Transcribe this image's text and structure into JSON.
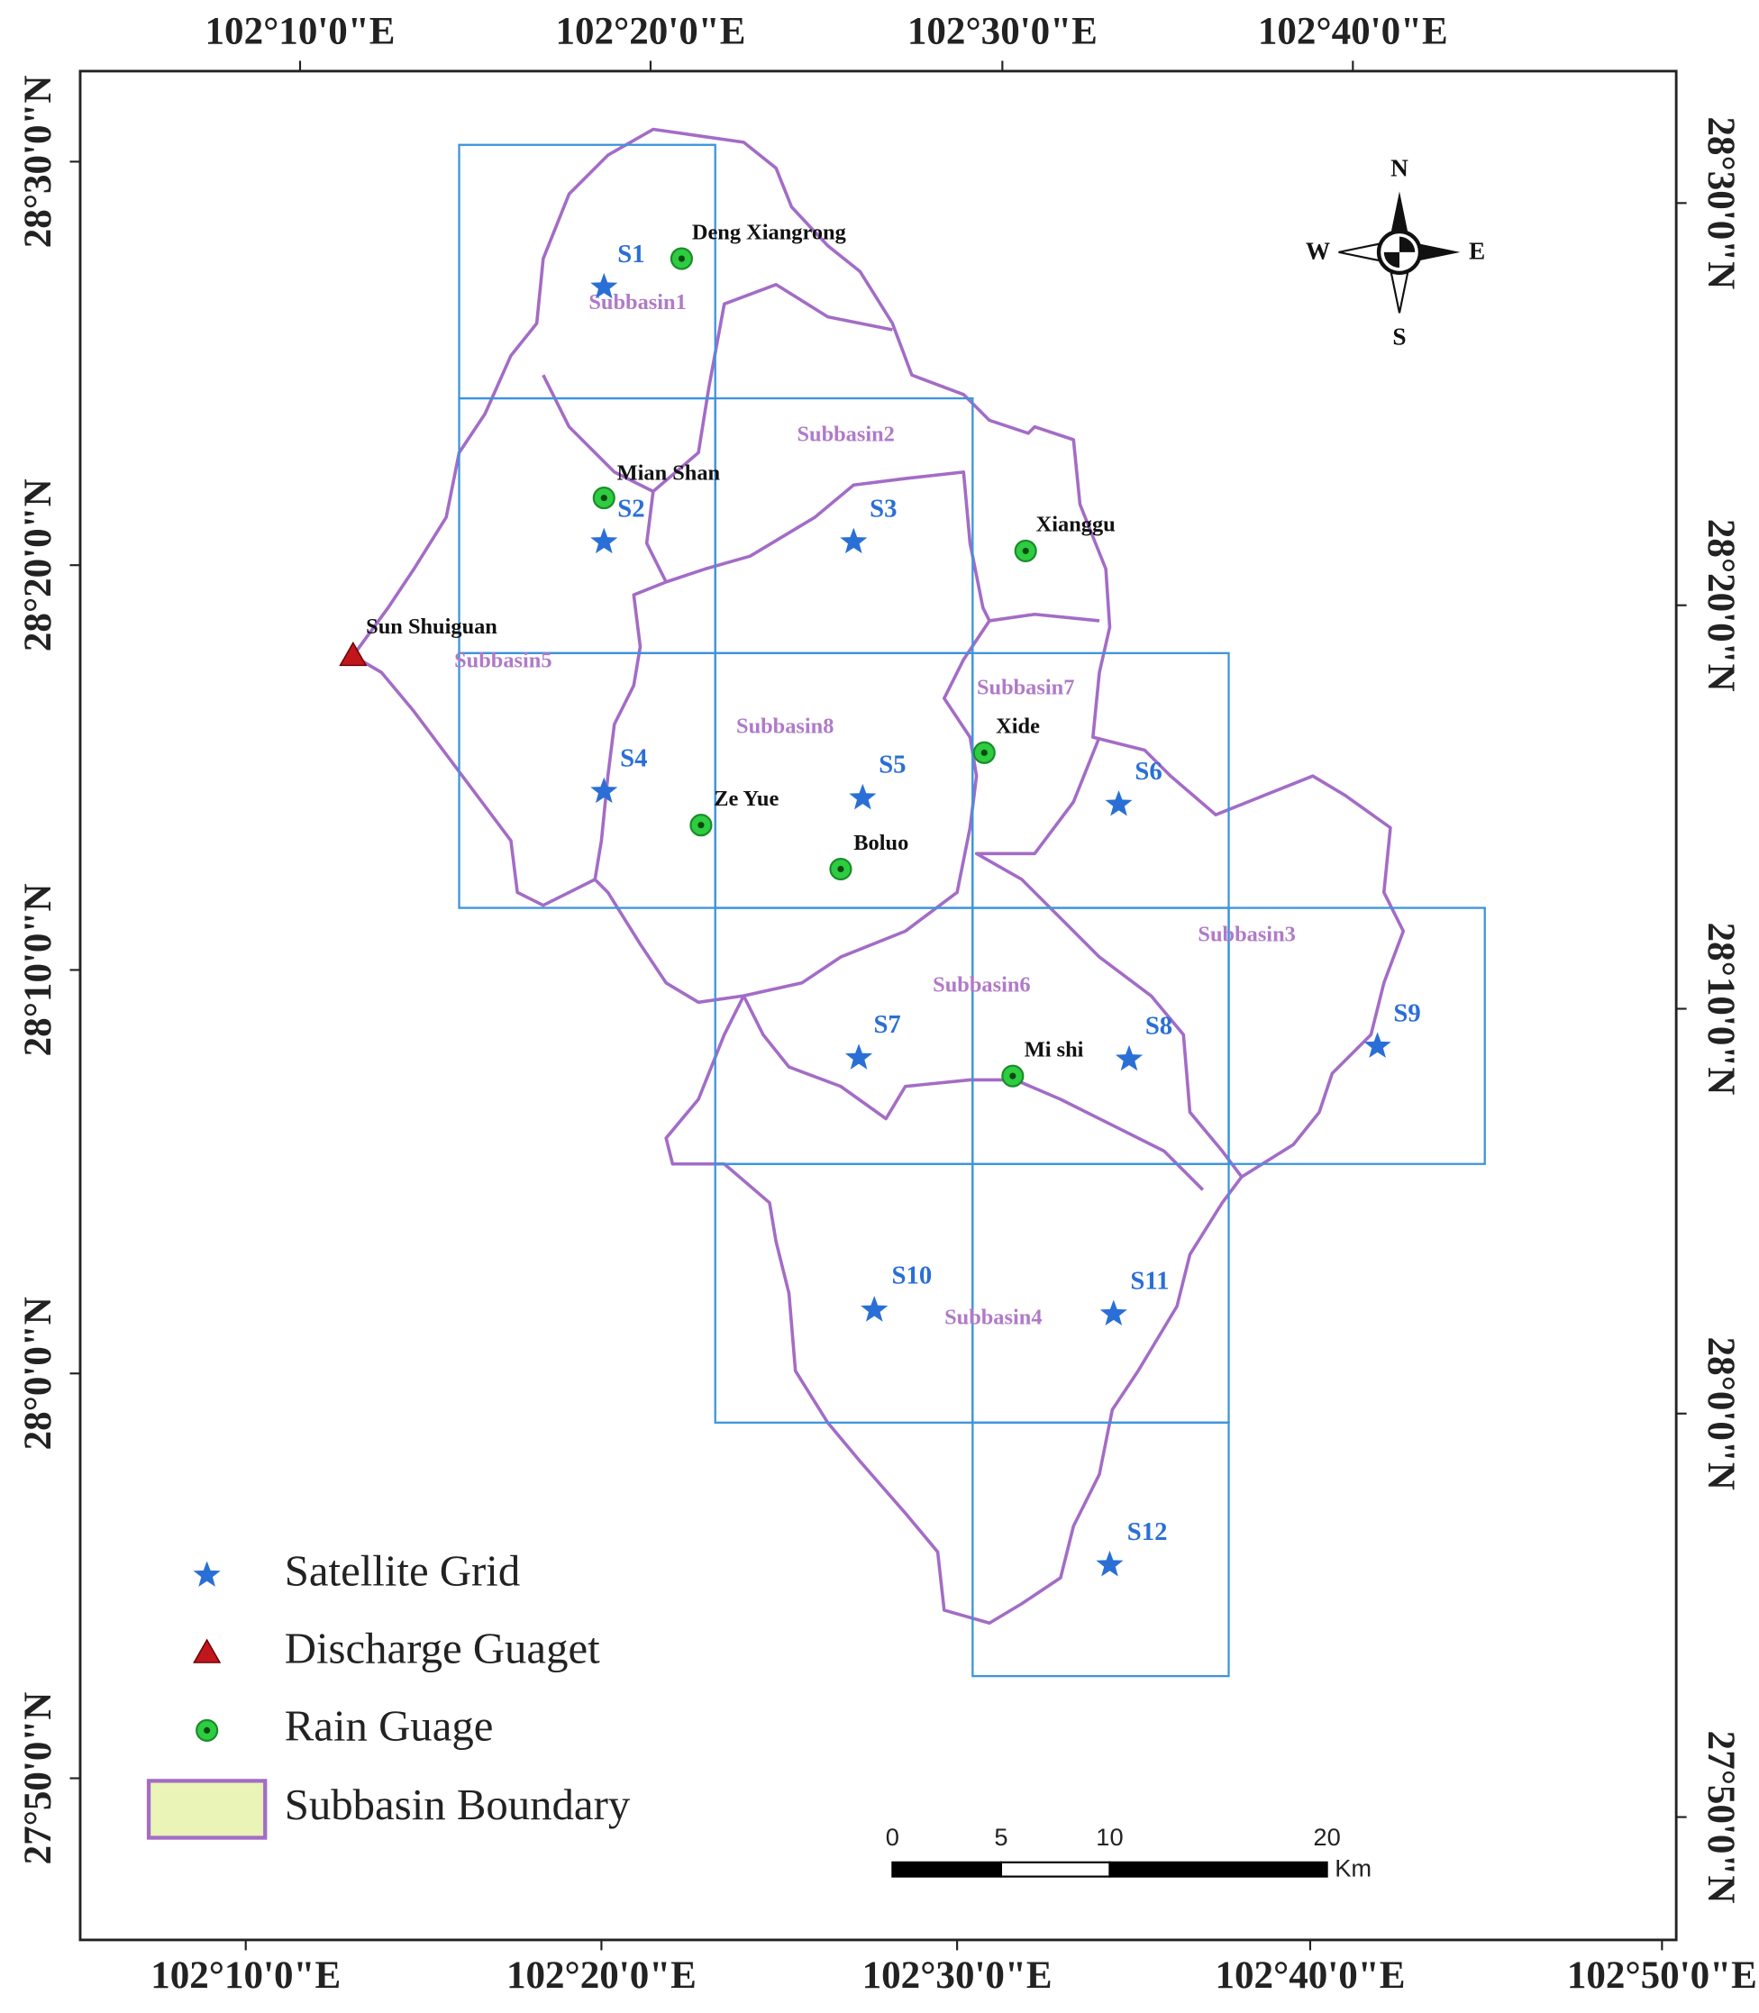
{
  "map": {
    "top_axis_labels": [
      "102°10'0\"E",
      "102°20'0\"E",
      "102°30'0\"E",
      "102°40'0\"E"
    ],
    "bottom_axis_labels": [
      "102°10'0\"E",
      "102°20'0\"E",
      "102°30'0\"E",
      "102°40'0\"E",
      "102°50'0\"E"
    ],
    "left_axis_labels": [
      "28°30'0\"N",
      "28°20'0\"N",
      "28°10'0\"N",
      "28°0'0\"N",
      "27°50'0\"N"
    ],
    "right_axis_labels": [
      "28°30'0\"N",
      "28°20'0\"N",
      "28°10'0\"N",
      "28°0'0\"N",
      "27°50'0\"N"
    ],
    "subbasins": [
      "Subbasin1",
      "Subbasin2",
      "Subbasin3",
      "Subbasin4",
      "Subbasin5",
      "Subbasin6",
      "Subbasin7",
      "Subbasin8"
    ],
    "rain_gauges": [
      "Deng Xiangrong",
      "Mian Shan",
      "Xianggu",
      "Xide",
      "Ze Yue",
      "Boluo",
      "Mi shi"
    ],
    "discharge_gauge": "Sun Shuiguan",
    "satellite_grids": [
      "S1",
      "S2",
      "S3",
      "S4",
      "S5",
      "S6",
      "S7",
      "S8",
      "S9",
      "S10",
      "S11",
      "S12"
    ],
    "compass": [
      "N",
      "E",
      "S",
      "W"
    ],
    "scale_bar": {
      "ticks": [
        0,
        5,
        10,
        20
      ],
      "unit": "Km"
    },
    "legend": [
      "Satellite Grid",
      "Discharge Guaget",
      "Rain Guage",
      "Subbasin Boundary"
    ]
  }
}
